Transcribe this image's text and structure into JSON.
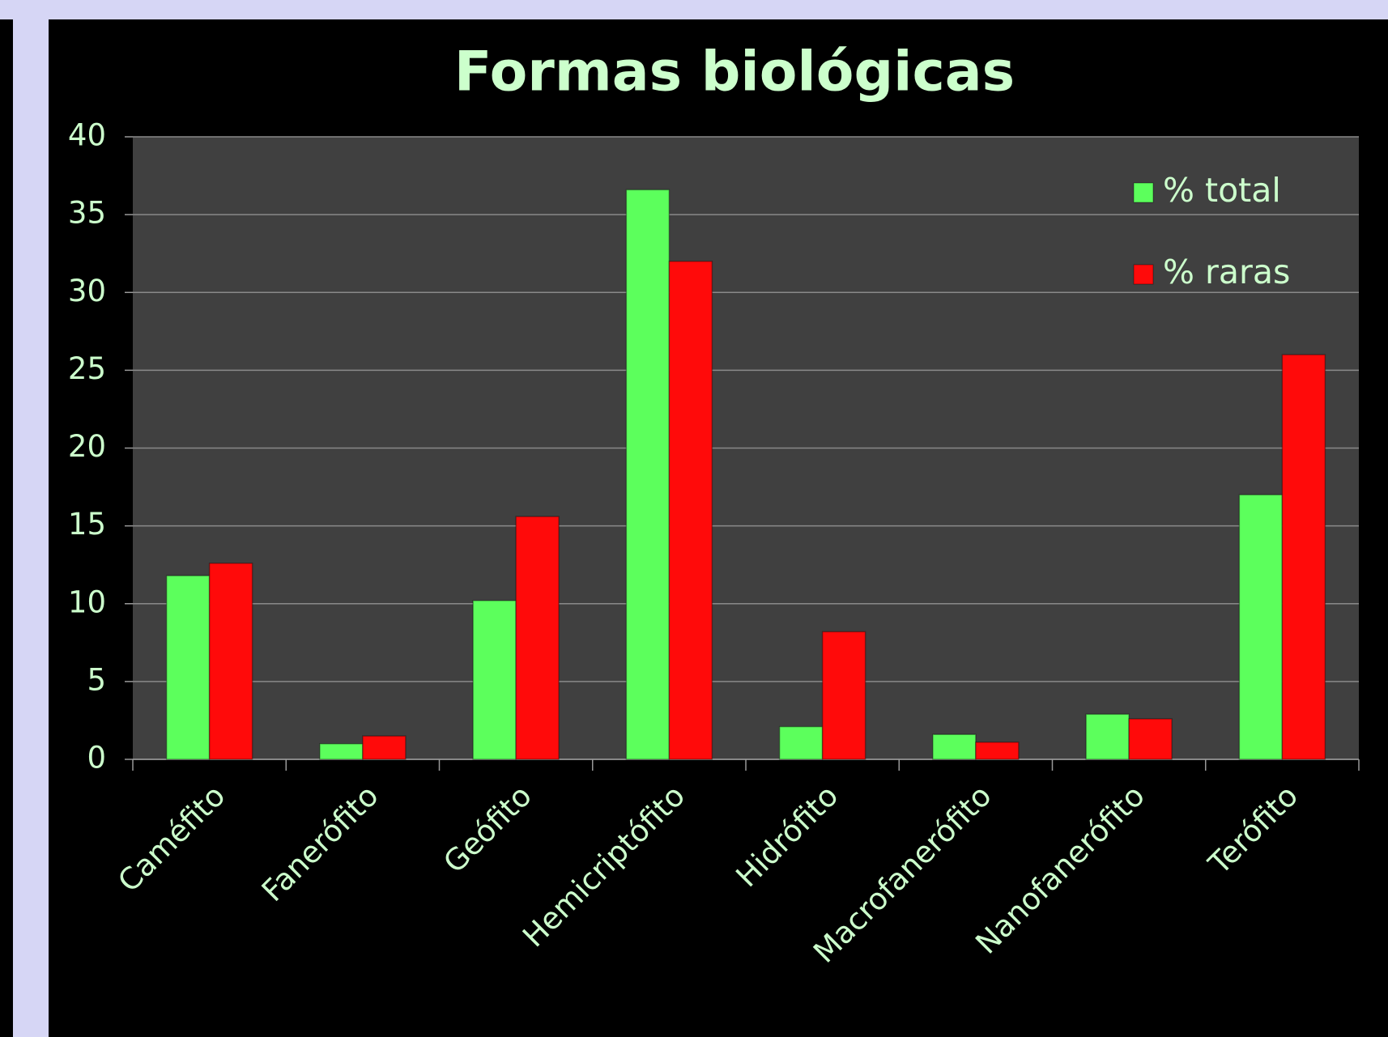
{
  "chart_data": {
    "type": "bar",
    "title": "Formas biológicas",
    "categories": [
      "Caméfito",
      "Fanerófito",
      "Geófito",
      "Hemicriptófito",
      "Hidrófito",
      "Macrofanerófito",
      "Nanofanerófito",
      "Terófito"
    ],
    "series": [
      {
        "name": "% total",
        "color": "#5cff5c",
        "values": [
          11.8,
          1.0,
          10.2,
          36.6,
          2.1,
          1.6,
          2.9,
          17.0
        ]
      },
      {
        "name": "% raras",
        "color": "#ff0a0a",
        "values": [
          12.6,
          1.5,
          15.6,
          32.0,
          8.2,
          1.1,
          2.6,
          26.0
        ]
      }
    ],
    "ylim": [
      0,
      40
    ],
    "yticks": [
      0,
      5,
      10,
      15,
      20,
      25,
      30,
      35,
      40
    ],
    "grid": true,
    "legend": "upper right"
  }
}
